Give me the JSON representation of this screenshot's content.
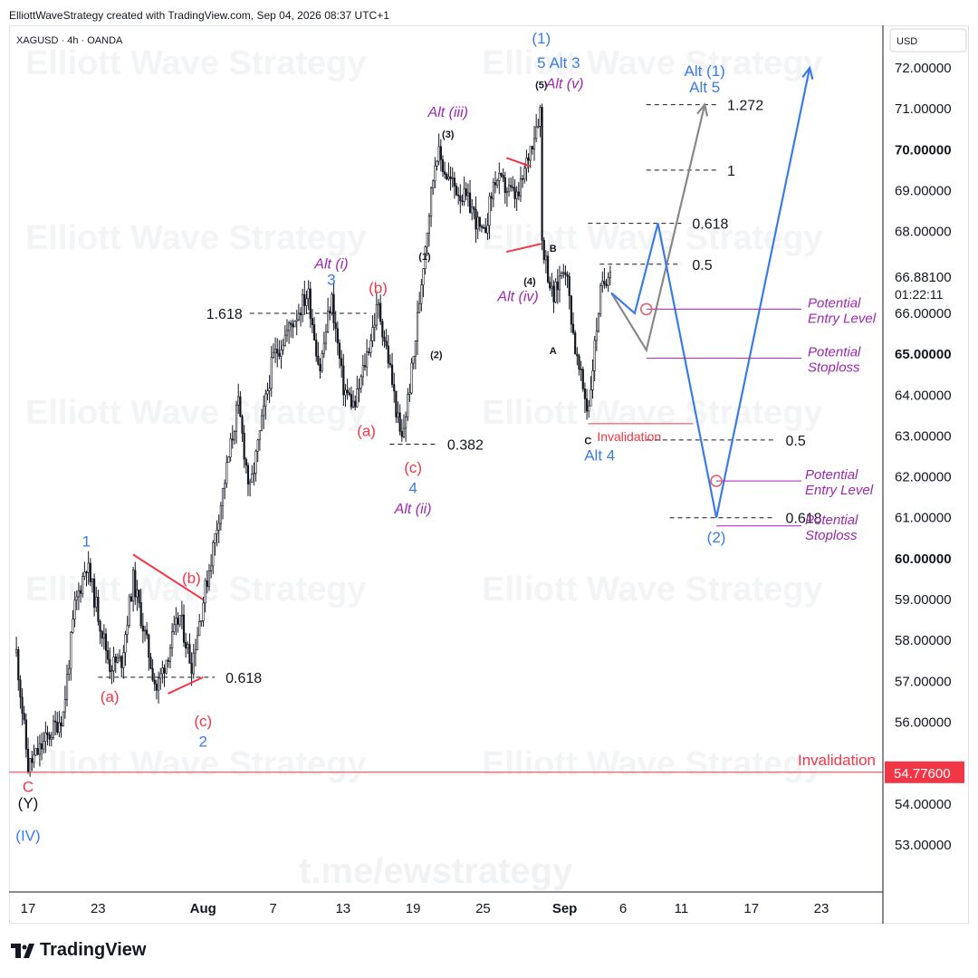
{
  "header": {
    "credit": "ElliottWaveStrategy created with TradingView.com, Sep 04, 2026 08:37 UTC+1"
  },
  "symbol": "XAGUSD · 4h · OANDA",
  "currency": "USD",
  "watermarks": {
    "main": "Elliott Wave Strategy",
    "telegram": "t.me/ewstrategy"
  },
  "brand": "TradingView",
  "colors": {
    "blue": "#2962ff",
    "wave_blue": "#3a7be8",
    "red": "#f23645",
    "purple": "#9c27b0",
    "grey": "#888888"
  },
  "chart_data": {
    "type": "candlestick",
    "title": "",
    "timeframe": "4h",
    "ylim": [
      52.0,
      73.0
    ],
    "x_ticks": [
      {
        "label": "17",
        "date": "2026-07-17"
      },
      {
        "label": "23",
        "date": "2026-07-23"
      },
      {
        "label": "Aug",
        "date": "2026-08-01",
        "bold": true
      },
      {
        "label": "7",
        "date": "2026-08-07"
      },
      {
        "label": "13",
        "date": "2026-08-13"
      },
      {
        "label": "19",
        "date": "2026-08-19"
      },
      {
        "label": "25",
        "date": "2026-08-25"
      },
      {
        "label": "Sep",
        "date": "2026-09-01",
        "bold": true
      },
      {
        "label": "6",
        "date": "2026-09-06"
      },
      {
        "label": "11",
        "date": "2026-09-11"
      },
      {
        "label": "17",
        "date": "2026-09-17"
      },
      {
        "label": "23",
        "date": "2026-09-23"
      }
    ],
    "y_ticks": [
      {
        "value": 72,
        "label": "72.00000"
      },
      {
        "value": 71,
        "label": "71.00000"
      },
      {
        "value": 70,
        "label": "70.00000",
        "bold": true
      },
      {
        "value": 69,
        "label": "69.00000"
      },
      {
        "value": 68,
        "label": "68.00000"
      },
      {
        "value": 66,
        "label": "66.00000"
      },
      {
        "value": 65,
        "label": "65.00000",
        "bold": true
      },
      {
        "value": 64,
        "label": "64.00000"
      },
      {
        "value": 63,
        "label": "63.00000"
      },
      {
        "value": 62,
        "label": "62.00000"
      },
      {
        "value": 61,
        "label": "61.00000"
      },
      {
        "value": 60,
        "label": "60.00000",
        "bold": true
      },
      {
        "value": 59,
        "label": "59.00000"
      },
      {
        "value": 58,
        "label": "58.00000"
      },
      {
        "value": 57,
        "label": "57.00000"
      },
      {
        "value": 56,
        "label": "56.00000"
      },
      {
        "value": 54,
        "label": "54.00000"
      },
      {
        "value": 53,
        "label": "53.00000"
      }
    ],
    "last_price": {
      "value": 66.881,
      "label": "66.88100",
      "countdown": "01:22:11"
    },
    "invalidation_price": {
      "value": 54.776,
      "label": "54.77600"
    },
    "price_path": [
      {
        "date": "2026-07-16",
        "price": 57.7
      },
      {
        "date": "2026-07-17",
        "price": 54.9
      },
      {
        "date": "2026-07-20",
        "price": 56.2
      },
      {
        "date": "2026-07-21",
        "price": 58.8
      },
      {
        "date": "2026-07-22",
        "price": 59.9
      },
      {
        "date": "2026-07-24",
        "price": 57.4
      },
      {
        "date": "2026-07-25",
        "price": 57.5
      },
      {
        "date": "2026-07-26",
        "price": 59.5
      },
      {
        "date": "2026-07-28",
        "price": 56.8
      },
      {
        "date": "2026-07-30",
        "price": 58.6
      },
      {
        "date": "2026-07-31",
        "price": 57.4
      },
      {
        "date": "2026-08-02",
        "price": 60.5
      },
      {
        "date": "2026-08-04",
        "price": 63.8
      },
      {
        "date": "2026-08-05",
        "price": 61.6
      },
      {
        "date": "2026-08-07",
        "price": 64.9
      },
      {
        "date": "2026-08-10",
        "price": 66.5
      },
      {
        "date": "2026-08-11",
        "price": 64.6
      },
      {
        "date": "2026-08-12",
        "price": 66.4
      },
      {
        "date": "2026-08-13",
        "price": 64.2
      },
      {
        "date": "2026-08-14",
        "price": 63.7
      },
      {
        "date": "2026-08-16",
        "price": 66.2
      },
      {
        "date": "2026-08-17",
        "price": 64.7
      },
      {
        "date": "2026-08-18",
        "price": 62.8
      },
      {
        "date": "2026-08-19",
        "price": 64.8
      },
      {
        "date": "2026-08-20",
        "price": 67.6
      },
      {
        "date": "2026-08-21",
        "price": 70.0
      },
      {
        "date": "2026-08-22",
        "price": 69.3
      },
      {
        "date": "2026-08-24",
        "price": 68.6
      },
      {
        "date": "2026-08-25",
        "price": 67.8
      },
      {
        "date": "2026-08-26",
        "price": 69.3
      },
      {
        "date": "2026-08-28",
        "price": 68.8
      },
      {
        "date": "2026-08-29",
        "price": 70.0
      },
      {
        "date": "2026-08-30",
        "price": 71.1
      },
      {
        "date": "2026-08-30",
        "price": 67.9
      },
      {
        "date": "2026-08-31",
        "price": 66.3
      },
      {
        "date": "2026-09-01",
        "price": 67.3
      },
      {
        "date": "2026-09-02",
        "price": 64.9
      },
      {
        "date": "2026-09-03",
        "price": 63.6
      },
      {
        "date": "2026-09-04",
        "price": 66.4
      },
      {
        "date": "2026-09-05",
        "price": 67.3
      },
      {
        "date": "2026-09-05",
        "price": 66.88
      }
    ],
    "fib_levels": [
      {
        "label": "1.618",
        "price": 66.0,
        "from": "2026-08-05",
        "to": "2026-08-15"
      },
      {
        "label": "0.382",
        "price": 62.8,
        "from": "2026-08-17",
        "to": "2026-08-21"
      },
      {
        "label": "0.618",
        "price": 57.1,
        "from": "2026-07-23",
        "to": "2026-08-02"
      },
      {
        "label": "1.272",
        "price": 71.1,
        "from": "2026-09-08",
        "to": "2026-09-14"
      },
      {
        "label": "1",
        "price": 69.5,
        "from": "2026-09-08",
        "to": "2026-09-14"
      },
      {
        "label": "0.618",
        "price": 68.2,
        "from": "2026-09-03",
        "to": "2026-09-11"
      },
      {
        "label": "0.5",
        "price": 67.2,
        "from": "2026-09-04",
        "to": "2026-09-11"
      },
      {
        "label": "0.5",
        "price": 62.9,
        "from": "2026-09-08",
        "to": "2026-09-19"
      },
      {
        "label": "0.618",
        "price": 61.0,
        "from": "2026-09-10",
        "to": "2026-09-19"
      }
    ],
    "invalidation_lines": [
      {
        "label": "Invalidation",
        "price": 54.776
      },
      {
        "label": "Invalidation",
        "price": 63.3
      }
    ],
    "annotations": [
      {
        "text": "C",
        "color": "red",
        "date": "2026-07-17",
        "price": 54.3
      },
      {
        "text": "(Y)",
        "color": "black",
        "date": "2026-07-17",
        "price": 53.9
      },
      {
        "text": "(IV)",
        "color": "blue",
        "date": "2026-07-17",
        "price": 53.1
      },
      {
        "text": "1",
        "color": "blue",
        "date": "2026-07-22",
        "price": 60.3
      },
      {
        "text": "(a)",
        "color": "red",
        "date": "2026-07-24",
        "price": 56.5
      },
      {
        "text": "(b)",
        "color": "red",
        "date": "2026-07-31",
        "price": 59.4
      },
      {
        "text": "(c)",
        "color": "red",
        "date": "2026-08-01",
        "price": 55.9
      },
      {
        "text": "2",
        "color": "blue",
        "date": "2026-08-01",
        "price": 55.4
      },
      {
        "text": "Alt (i)",
        "color": "purple",
        "date": "2026-08-12",
        "price": 67.1
      },
      {
        "text": "3",
        "color": "blue",
        "date": "2026-08-12",
        "price": 66.7
      },
      {
        "text": "(b)",
        "color": "red",
        "date": "2026-08-16",
        "price": 66.5
      },
      {
        "text": "(a)",
        "color": "red",
        "date": "2026-08-15",
        "price": 63.0
      },
      {
        "text": "(c)",
        "color": "red",
        "date": "2026-08-19",
        "price": 62.1
      },
      {
        "text": "4",
        "color": "blue",
        "date": "2026-08-19",
        "price": 61.6
      },
      {
        "text": "Alt (ii)",
        "color": "purple",
        "date": "2026-08-19",
        "price": 61.1
      },
      {
        "text": "(1)",
        "color": "black",
        "date": "2026-08-20",
        "price": 67.3
      },
      {
        "text": "(2)",
        "color": "black",
        "date": "2026-08-21",
        "price": 64.9
      },
      {
        "text": "(3)",
        "color": "black",
        "date": "2026-08-22",
        "price": 70.3
      },
      {
        "text": "Alt (iii)",
        "color": "purple",
        "date": "2026-08-22",
        "price": 70.8
      },
      {
        "text": "(4)",
        "color": "black",
        "date": "2026-08-29",
        "price": 66.7
      },
      {
        "text": "Alt (iv)",
        "color": "purple",
        "date": "2026-08-28",
        "price": 66.3
      },
      {
        "text": "(1)",
        "color": "blue",
        "date": "2026-08-30",
        "price": 72.6
      },
      {
        "text": "5",
        "color": "blue",
        "date": "2026-08-30",
        "price": 72.0
      },
      {
        "text": "(5)",
        "color": "black",
        "date": "2026-08-30",
        "price": 71.5
      },
      {
        "text": "Alt 3",
        "color": "blue",
        "date": "2026-09-01",
        "price": 72.0
      },
      {
        "text": "Alt (v)",
        "color": "purple",
        "date": "2026-09-01",
        "price": 71.5
      },
      {
        "text": "B",
        "color": "black",
        "date": "2026-08-31",
        "price": 67.5
      },
      {
        "text": "A",
        "color": "black",
        "date": "2026-08-31",
        "price": 65.0
      },
      {
        "text": "C",
        "color": "black",
        "date": "2026-09-03",
        "price": 62.8
      },
      {
        "text": "Alt 4",
        "color": "blue",
        "date": "2026-09-04",
        "price": 62.4
      },
      {
        "text": "Alt (1)",
        "color": "blue",
        "date": "2026-09-13",
        "price": 71.8
      },
      {
        "text": "Alt 5",
        "color": "blue",
        "date": "2026-09-13",
        "price": 71.4
      },
      {
        "text": "(2)",
        "color": "blue",
        "date": "2026-09-14",
        "price": 60.4
      }
    ],
    "scenarios": [
      {
        "name": "primary",
        "color": "blue",
        "points": [
          {
            "date": "2026-09-05",
            "price": 66.5
          },
          {
            "date": "2026-09-07",
            "price": 66.0
          },
          {
            "date": "2026-09-09",
            "price": 68.2
          },
          {
            "date": "2026-09-14",
            "price": 61.0
          },
          {
            "date": "2026-09-22",
            "price": 72.0
          }
        ]
      },
      {
        "name": "alternate",
        "color": "grey",
        "points": [
          {
            "date": "2026-09-05",
            "price": 66.5
          },
          {
            "date": "2026-09-08",
            "price": 65.1
          },
          {
            "date": "2026-09-13",
            "price": 71.1
          }
        ]
      }
    ],
    "trade_levels": [
      {
        "label": "Potential Entry Level",
        "price": 66.1,
        "marker": true
      },
      {
        "label": "Potential Stoploss",
        "price": 64.9
      },
      {
        "label": "Potential Entry Level",
        "price": 61.9,
        "marker": true
      },
      {
        "label": "Potential Stoploss",
        "price": 60.8
      }
    ]
  }
}
